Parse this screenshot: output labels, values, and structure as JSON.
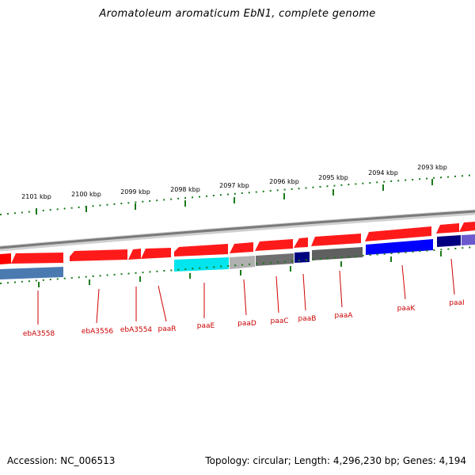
{
  "title": "Aromatoleum aromaticum EbN1, complete genome",
  "footer": {
    "accession": "Accession: NC_006513",
    "topology": "Topology: circular; Length: 4,296,230 bp; Genes: 4,194"
  },
  "colors": {
    "forward_gene": "#ff0000",
    "label_text": "#cc0000",
    "tick": "#1a7a1a",
    "backbone": "#808080"
  },
  "scale_ticks": [
    "2101 kbp",
    "2100 kbp",
    "2099 kbp",
    "2098 kbp",
    "2097 kbp",
    "2096 kbp",
    "2095 kbp",
    "2094 kbp",
    "2093 kbp"
  ],
  "gene_labels": [
    "ebA3558",
    "ebA3556",
    "ebA3554",
    "paaR",
    "paaE",
    "paaD",
    "paaC",
    "paaB",
    "paaA",
    "paaK",
    "paaI"
  ],
  "legend_colors": {
    "ebA3558": "#4a7ab0",
    "paaE": "#00e5ee",
    "paaD": "#b0b0b0",
    "paaC": "#707070",
    "paaB": "#000080",
    "paaA": "#606060",
    "paaK": "#0000ff",
    "paaI": "#000080"
  }
}
